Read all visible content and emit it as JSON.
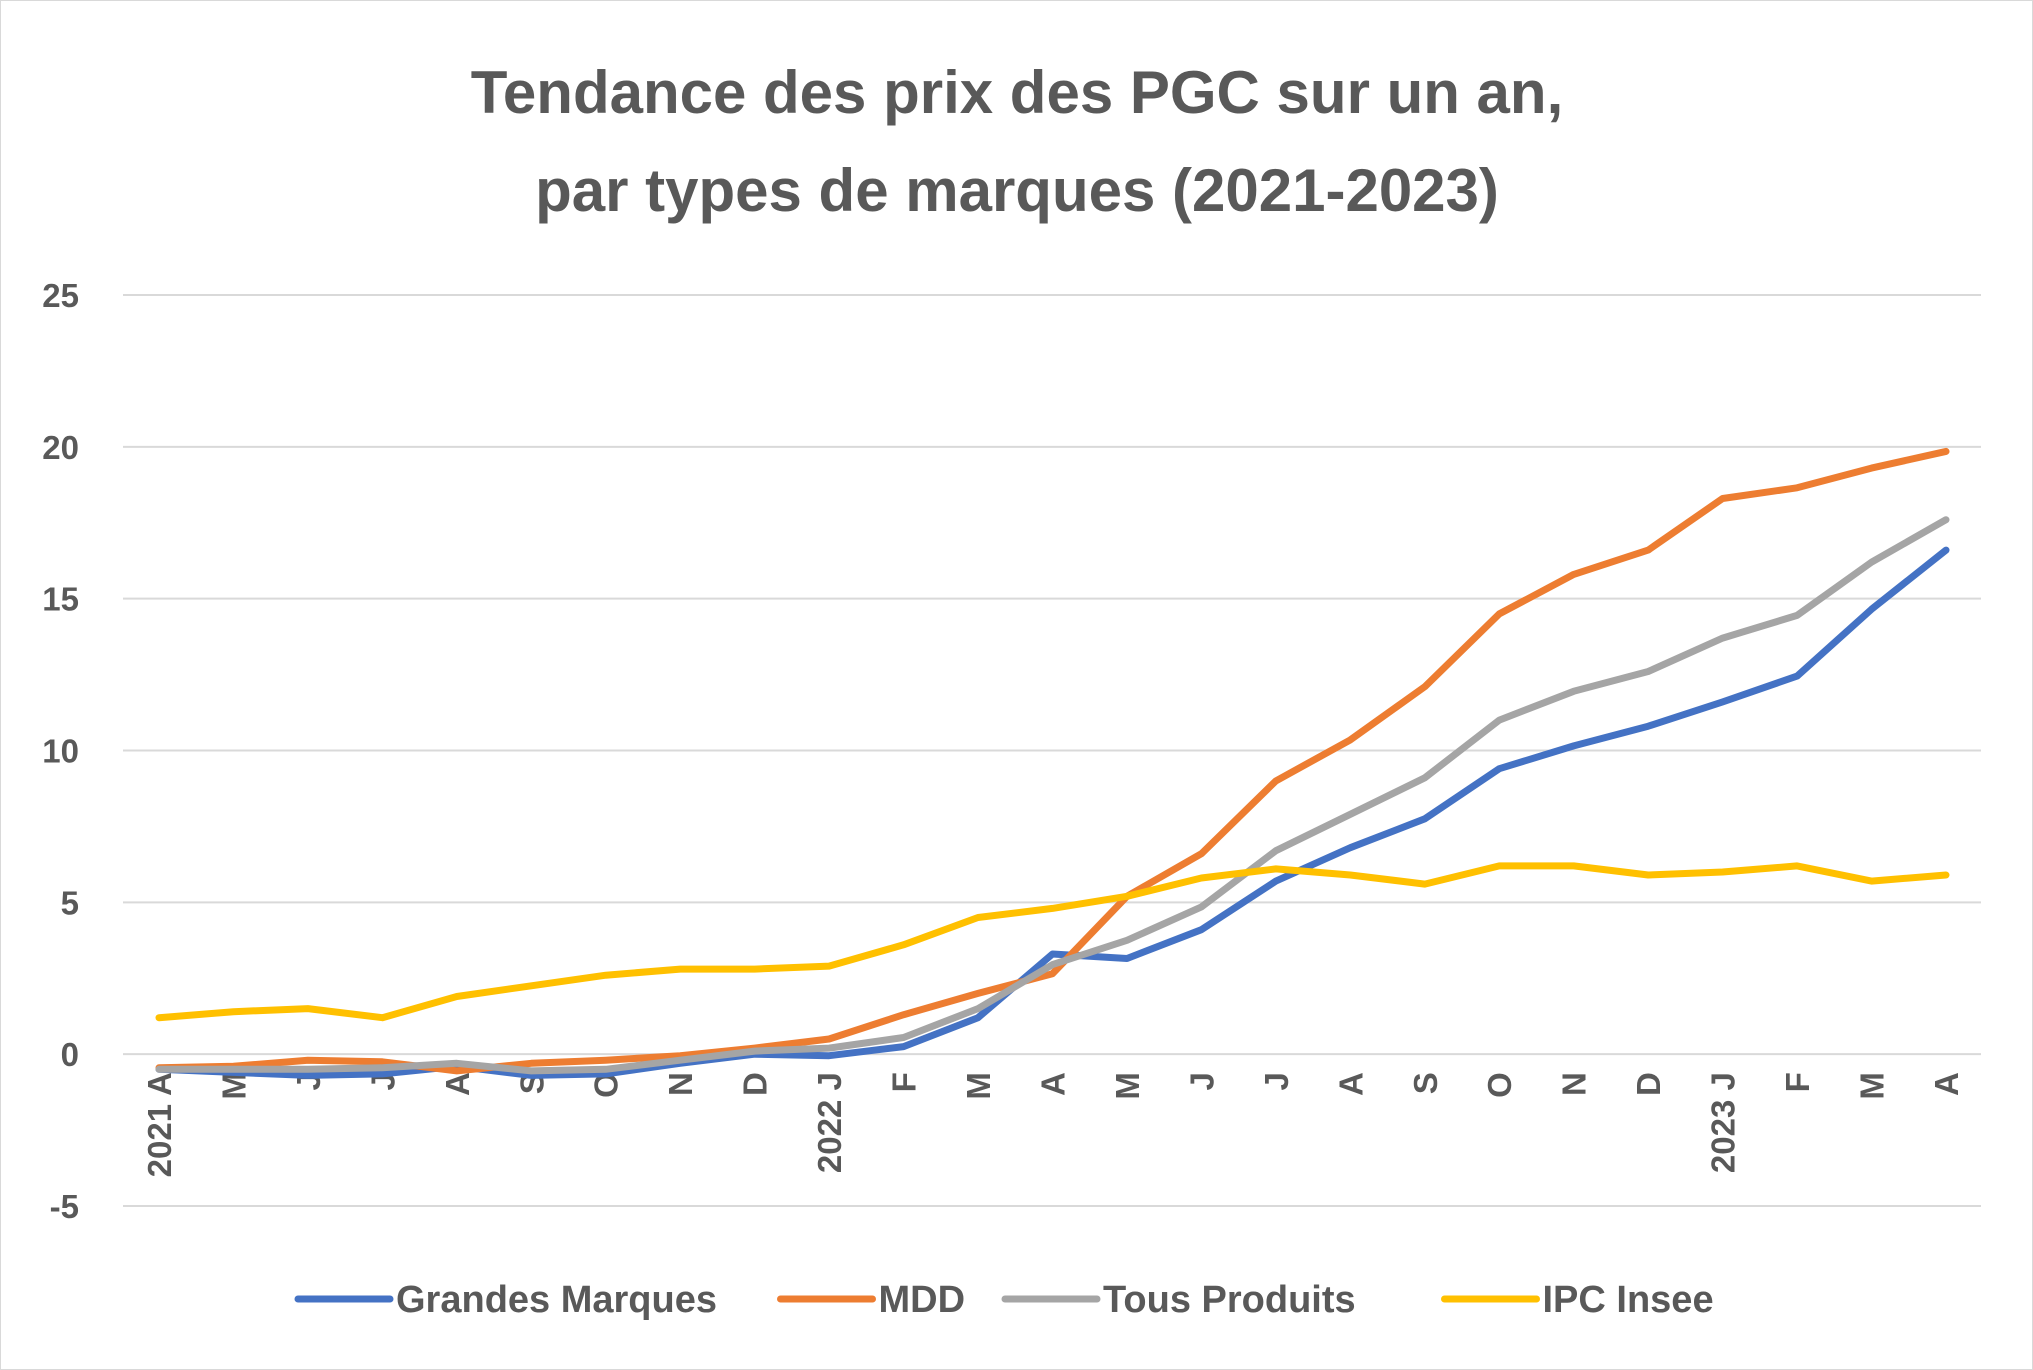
{
  "chart_data": {
    "type": "line",
    "title": "Tendance des prix des PGC sur un an,",
    "subtitle": "par types de marques (2021-2023)",
    "xlabel": "",
    "ylabel": "",
    "ylim": [
      -5,
      25
    ],
    "yticks": [
      "25",
      "20",
      "15",
      "10",
      "5",
      "0",
      "-5"
    ],
    "ytick_values": [
      25,
      20,
      15,
      10,
      5,
      0,
      -5
    ],
    "categories": [
      "2021 A",
      "M",
      "J",
      "J",
      "A",
      "S",
      "O",
      "N",
      "D",
      "2022 J",
      "F",
      "M",
      "A",
      "M",
      "J",
      "J",
      "A",
      "S",
      "O",
      "N",
      "D",
      "2023 J",
      "F",
      "M",
      "A"
    ],
    "grid": true,
    "legend_position": "bottom",
    "series": [
      {
        "name": "Grandes Marques",
        "color": "#4472C4",
        "values": [
          -0.5,
          -0.6,
          -0.7,
          -0.65,
          -0.4,
          -0.7,
          -0.65,
          -0.3,
          0.0,
          -0.05,
          0.25,
          1.2,
          3.3,
          3.15,
          4.1,
          5.7,
          6.8,
          7.75,
          9.4,
          10.15,
          10.8,
          11.6,
          12.45,
          14.65,
          16.6
        ]
      },
      {
        "name": "MDD",
        "color": "#ED7D31",
        "values": [
          -0.45,
          -0.4,
          -0.2,
          -0.25,
          -0.55,
          -0.3,
          -0.2,
          -0.05,
          0.2,
          0.5,
          1.3,
          2.0,
          2.65,
          5.2,
          6.6,
          9.0,
          10.35,
          12.1,
          14.5,
          15.8,
          16.6,
          18.3,
          18.65,
          19.3,
          19.85
        ]
      },
      {
        "name": "Tous Produits",
        "color": "#A5A5A5",
        "values": [
          -0.5,
          -0.5,
          -0.5,
          -0.45,
          -0.3,
          -0.55,
          -0.5,
          -0.2,
          0.1,
          0.2,
          0.55,
          1.5,
          2.95,
          3.75,
          4.85,
          6.7,
          7.9,
          9.1,
          11.0,
          11.95,
          12.6,
          13.7,
          14.45,
          16.2,
          17.6
        ]
      },
      {
        "name": "IPC Insee",
        "color": "#FFC000",
        "values": [
          1.2,
          1.4,
          1.5,
          1.2,
          1.9,
          2.25,
          2.6,
          2.8,
          2.8,
          2.9,
          3.6,
          4.5,
          4.8,
          5.2,
          5.8,
          6.1,
          5.9,
          5.6,
          6.2,
          6.2,
          5.9,
          6.0,
          6.2,
          5.7,
          5.9
        ]
      }
    ]
  }
}
